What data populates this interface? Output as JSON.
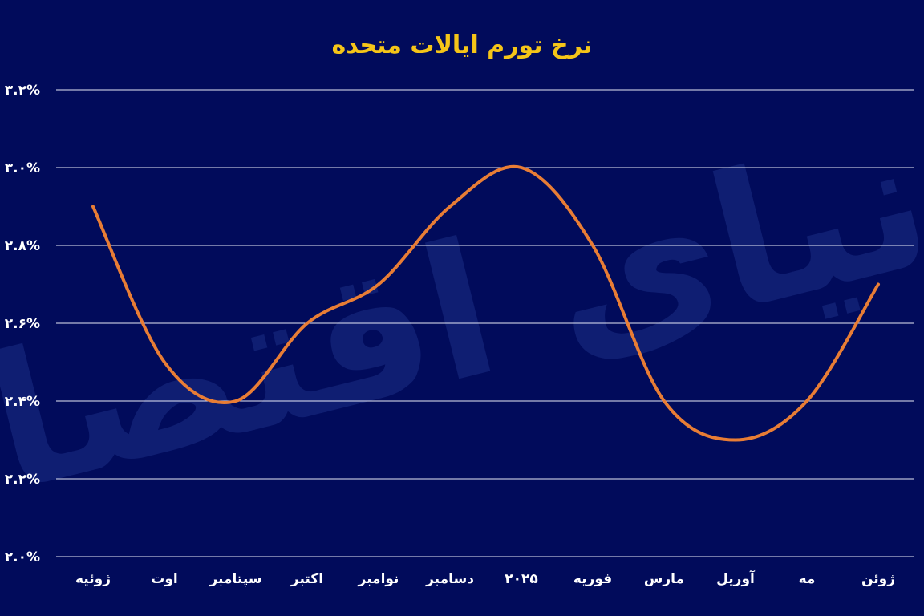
{
  "colors": {
    "background": "#010b5b",
    "title": "#f5c518",
    "line": "#e87d35",
    "grid": "#e6e8f5",
    "text": "#ffffff",
    "watermark": "#22378f"
  },
  "watermark": {
    "text": "دنیای اقتصاد"
  },
  "chart_data": {
    "type": "line",
    "title": "نرخ تورم ایالات متحده",
    "categories": [
      "ژوئیه",
      "اوت",
      "سپتامبر",
      "اکتبر",
      "نوامبر",
      "دسامبر",
      "۲۰۲۵",
      "فوریه",
      "مارس",
      "آوریل",
      "مه",
      "ژوئن"
    ],
    "values": [
      2.9,
      2.5,
      2.4,
      2.6,
      2.7,
      2.9,
      3.0,
      2.8,
      2.4,
      2.3,
      2.4,
      2.7
    ],
    "ylim": [
      2.0,
      3.2
    ],
    "y_ticks": [
      "۲.۰%",
      "۲.۲%",
      "۲.۴%",
      "۲.۶%",
      "۲.۸%",
      "۳.۰%",
      "۳.۲%"
    ],
    "y_tick_values": [
      2.0,
      2.2,
      2.4,
      2.6,
      2.8,
      3.0,
      3.2
    ],
    "grid": true,
    "smooth": true
  }
}
